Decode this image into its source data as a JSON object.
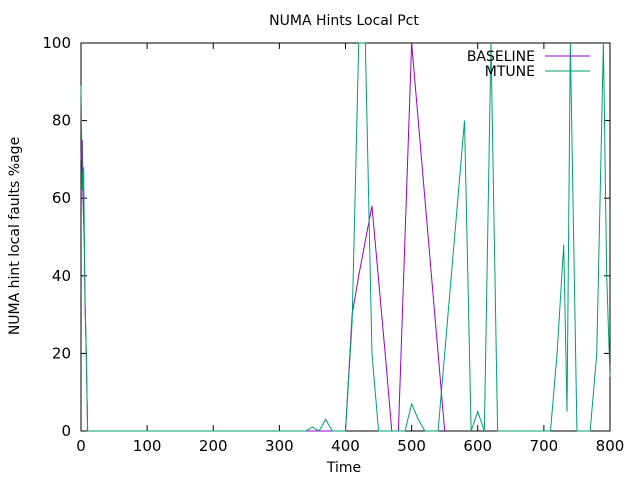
{
  "chart_data": {
    "type": "line",
    "title": "NUMA Hints Local Pct",
    "xlabel": "Time",
    "ylabel": "NUMA hint local faults %age",
    "xlim": [
      0,
      800
    ],
    "ylim": [
      0,
      100
    ],
    "xticks": [
      0,
      100,
      200,
      300,
      400,
      500,
      600,
      700,
      800
    ],
    "yticks": [
      0,
      20,
      40,
      60,
      80,
      100
    ],
    "grid": false,
    "legend_position": "top-right",
    "series": [
      {
        "name": "BASELINE",
        "color": "#9400d3",
        "points": [
          [
            0,
            70
          ],
          [
            2,
            75
          ],
          [
            3,
            60
          ],
          [
            5,
            48
          ],
          [
            6,
            33
          ],
          [
            8,
            20
          ],
          [
            10,
            0
          ],
          [
            400,
            0
          ],
          [
            410,
            30
          ],
          [
            420,
            40
          ],
          [
            440,
            58
          ],
          [
            460,
            20
          ],
          [
            470,
            0
          ],
          [
            480,
            0
          ],
          [
            500,
            100
          ],
          [
            520,
            60
          ],
          [
            540,
            20
          ],
          [
            550,
            0
          ]
        ]
      },
      {
        "name": "MTUNE",
        "color": "#009e73",
        "points": [
          [
            0,
            89
          ],
          [
            2,
            62
          ],
          [
            4,
            68
          ],
          [
            6,
            35
          ],
          [
            8,
            20
          ],
          [
            10,
            0
          ],
          [
            340,
            0
          ],
          [
            350,
            1
          ],
          [
            360,
            0
          ],
          [
            370,
            3
          ],
          [
            380,
            0
          ],
          [
            400,
            0
          ],
          [
            410,
            28
          ],
          [
            420,
            100
          ],
          [
            430,
            100
          ],
          [
            440,
            20
          ],
          [
            450,
            0
          ],
          [
            480,
            0
          ],
          [
            490,
            0
          ],
          [
            500,
            7
          ],
          [
            510,
            3
          ],
          [
            520,
            0
          ],
          [
            540,
            0
          ],
          [
            550,
            20
          ],
          [
            560,
            40
          ],
          [
            570,
            60
          ],
          [
            580,
            80
          ],
          [
            590,
            0
          ],
          [
            600,
            5
          ],
          [
            610,
            0
          ],
          [
            620,
            100
          ],
          [
            630,
            0
          ],
          [
            710,
            0
          ],
          [
            720,
            20
          ],
          [
            730,
            48
          ],
          [
            735,
            5
          ],
          [
            740,
            100
          ],
          [
            745,
            50
          ],
          [
            750,
            0
          ],
          [
            770,
            0
          ],
          [
            780,
            20
          ],
          [
            790,
            100
          ],
          [
            795,
            40
          ],
          [
            800,
            14
          ]
        ]
      }
    ]
  }
}
